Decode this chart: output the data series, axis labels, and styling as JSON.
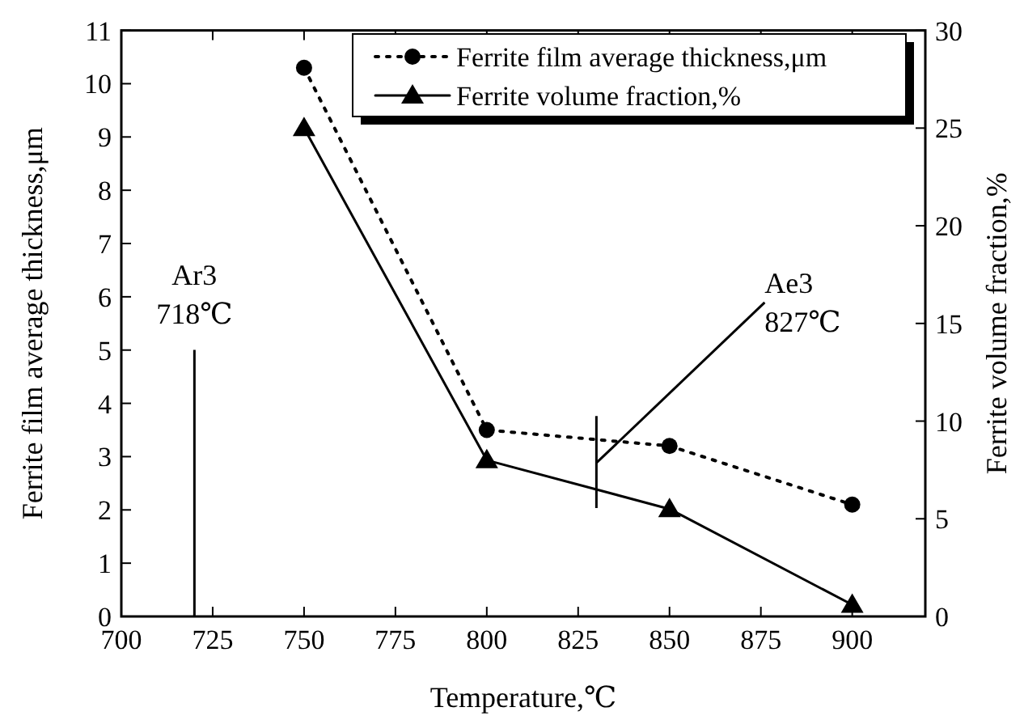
{
  "chart_data": {
    "type": "line",
    "xlabel": "Temperature,℃",
    "ylabel": "Ferrite film average thickness,μm",
    "y2label": "Ferrite volume fraction,%",
    "x": [
      750,
      800,
      850,
      900
    ],
    "series": [
      {
        "name": "Ferrite film average thickness,μm",
        "color": "#000000",
        "values": [
          10.3,
          3.5,
          3.2,
          2.1
        ],
        "marker": "circle",
        "line_style": "dotted"
      },
      {
        "name": "Ferrite volume fraction,%",
        "color": "#000000",
        "values": [
          25,
          8,
          5.5,
          0.6
        ],
        "marker": "triangle",
        "line_style": "solid",
        "axis": "y2"
      }
    ],
    "xlim": [
      700,
      920
    ],
    "xticks": [
      700,
      725,
      750,
      775,
      800,
      825,
      850,
      875,
      900
    ],
    "ylim": [
      0,
      11
    ],
    "yticks": [
      0,
      1,
      2,
      3,
      4,
      5,
      6,
      7,
      8,
      9,
      10,
      11
    ],
    "y2lim": [
      0,
      30
    ],
    "y2ticks": [
      0,
      5,
      10,
      15,
      20,
      25,
      30
    ],
    "ref_lines": [
      {
        "axis": "x",
        "value": 720,
        "label": "Ar3\n718℃"
      },
      {
        "axis": "x",
        "value": 830,
        "label": "Ae3\n827℃"
      }
    ],
    "legend": "top right",
    "grid": false
  }
}
